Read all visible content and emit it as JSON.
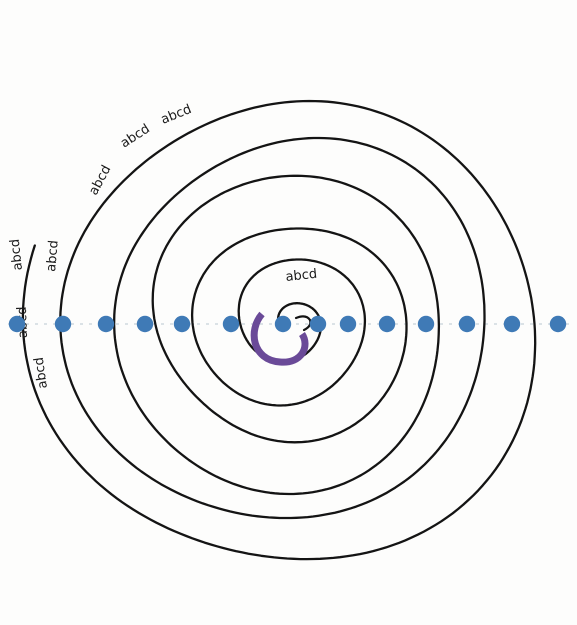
{
  "diagram": {
    "type": "spiral",
    "labels": [
      "abcd",
      "abcd",
      "abcd",
      "abcd",
      "abcd",
      "abcd",
      "abcd",
      "abcd"
    ],
    "dot_count": 15,
    "colors": {
      "spiral_stroke": "#141414",
      "dot_fill": "#3f7ab6",
      "center_hook": "#6a4a98",
      "background": "#fdfdfc"
    }
  }
}
